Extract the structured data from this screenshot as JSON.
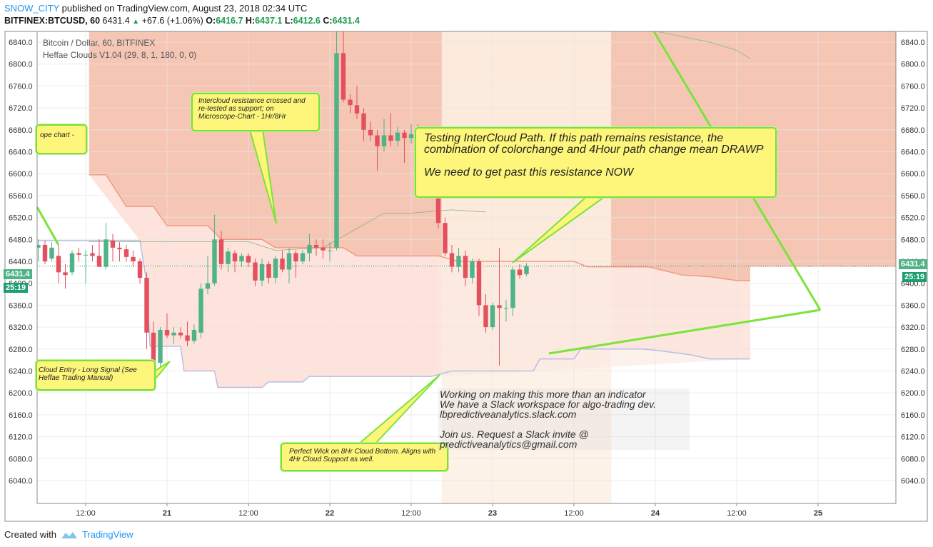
{
  "header": {
    "user": "SNOW_CITY",
    "published": " published on TradingView.com, August 23, 2018 02:34 UTC",
    "symbol": "BITFINEX:BTCUSD, 60",
    "last": "6431.4",
    "change": "+67.6 (+1.06%)",
    "open_label": "O:",
    "open": "6416.7",
    "high_label": "H:",
    "high": "6437.1",
    "low_label": "L:",
    "low": "6412.6",
    "close_label": "C:",
    "close": "6431.4"
  },
  "legend": {
    "title": "Bitcoin / Dollar, 60, BITFINEX",
    "indicator": "Heffae Clouds V1.04 (29, 8, 1, 180, 0, 0)"
  },
  "price_tags": {
    "price": "6431.4",
    "countdown": "25:19"
  },
  "callouts": {
    "intercloud": "Intercloud resistance crossed and re-tested as support; on Microscope-Chart - 1Hr/8Hr",
    "testing_line1": "Testing InterCloud Path. If this path remains resistance, the combination of colorchange and 4Hour path change mean DRAWP",
    "testing_line2": "We need to get past this resistance NOW",
    "perfect_wick": "Perfect Wick on 8Hr Cloud Bottom. Aligns with 4Hr Cloud Support as well.",
    "scope": "ope chart -",
    "entry": "Cloud Entry - Long Signal (See Heffae Trading Manual)"
  },
  "note": "Working on making this more than an indicator\nWe have a Slack workspace for algo-trading dev.\nlbpredictiveanalytics.slack.com\n\nJoin us. Request a Slack invite @\npredictiveanalytics@gmail.com",
  "footer": {
    "created": "Created with",
    "brand": "TradingView"
  },
  "colors": {
    "up": "#4fb387",
    "down": "#e4505e",
    "cloud_red": "#f6c6b5",
    "cloud_pink": "#fde3dc",
    "cloud_light": "#fdf0e4",
    "callout": "#fdf67a",
    "callout_border": "#78e03a"
  },
  "chart_data": {
    "type": "candlestick",
    "title": "Bitcoin / Dollar, 60, BITFINEX",
    "ylim": [
      6000,
      6860
    ],
    "y_ticks": [
      6040,
      6080,
      6120,
      6160,
      6200,
      6240,
      6280,
      6320,
      6360,
      6400,
      6440,
      6480,
      6520,
      6560,
      6600,
      6640,
      6680,
      6720,
      6760,
      6800,
      6840
    ],
    "x_ticks": [
      {
        "label": "12:00",
        "hour": 12
      },
      {
        "label": "21",
        "hour": 24
      },
      {
        "label": "12:00",
        "hour": 36
      },
      {
        "label": "22",
        "hour": 48
      },
      {
        "label": "12:00",
        "hour": 60
      },
      {
        "label": "23",
        "hour": 72
      },
      {
        "label": "12:00",
        "hour": 84
      },
      {
        "label": "24",
        "hour": 96
      },
      {
        "label": "12:00",
        "hour": 108
      },
      {
        "label": "25",
        "hour": 120
      }
    ],
    "x_range_hours": [
      5,
      110
    ],
    "x_unit": "hours from 20 Aug 2018 00:00 UTC",
    "last_price": 6431.4,
    "candles": [
      {
        "t": 5,
        "o": 6465,
        "h": 6480,
        "l": 6440,
        "c": 6470
      },
      {
        "t": 6,
        "o": 6470,
        "h": 6478,
        "l": 6435,
        "c": 6440
      },
      {
        "t": 7,
        "o": 6445,
        "h": 6475,
        "l": 6440,
        "c": 6465
      },
      {
        "t": 8,
        "o": 6450,
        "h": 6470,
        "l": 6400,
        "c": 6420
      },
      {
        "t": 9,
        "o": 6420,
        "h": 6435,
        "l": 6390,
        "c": 6415
      },
      {
        "t": 10,
        "o": 6420,
        "h": 6460,
        "l": 6415,
        "c": 6455
      },
      {
        "t": 11,
        "o": 6455,
        "h": 6465,
        "l": 6440,
        "c": 6452
      },
      {
        "t": 12,
        "o": 6452,
        "h": 6460,
        "l": 6400,
        "c": 6452
      },
      {
        "t": 13,
        "o": 6455,
        "h": 6470,
        "l": 6440,
        "c": 6450
      },
      {
        "t": 14,
        "o": 6450,
        "h": 6480,
        "l": 6430,
        "c": 6430
      },
      {
        "t": 15,
        "o": 6430,
        "h": 6510,
        "l": 6425,
        "c": 6480
      },
      {
        "t": 16,
        "o": 6478,
        "h": 6490,
        "l": 6440,
        "c": 6465
      },
      {
        "t": 17,
        "o": 6465,
        "h": 6475,
        "l": 6440,
        "c": 6462
      },
      {
        "t": 18,
        "o": 6462,
        "h": 6470,
        "l": 6440,
        "c": 6448
      },
      {
        "t": 19,
        "o": 6448,
        "h": 6460,
        "l": 6430,
        "c": 6440
      },
      {
        "t": 20,
        "o": 6440,
        "h": 6445,
        "l": 6400,
        "c": 6410
      },
      {
        "t": 21,
        "o": 6410,
        "h": 6420,
        "l": 6280,
        "c": 6310
      },
      {
        "t": 22,
        "o": 6310,
        "h": 6330,
        "l": 6240,
        "c": 6255
      },
      {
        "t": 23,
        "o": 6255,
        "h": 6320,
        "l": 6245,
        "c": 6315
      },
      {
        "t": 24,
        "o": 6315,
        "h": 6345,
        "l": 6300,
        "c": 6305
      },
      {
        "t": 25,
        "o": 6305,
        "h": 6320,
        "l": 6290,
        "c": 6310
      },
      {
        "t": 26,
        "o": 6310,
        "h": 6320,
        "l": 6300,
        "c": 6305
      },
      {
        "t": 27,
        "o": 6305,
        "h": 6330,
        "l": 6285,
        "c": 6295
      },
      {
        "t": 28,
        "o": 6295,
        "h": 6325,
        "l": 6290,
        "c": 6315
      },
      {
        "t": 29,
        "o": 6310,
        "h": 6400,
        "l": 6300,
        "c": 6390
      },
      {
        "t": 30,
        "o": 6390,
        "h": 6450,
        "l": 6380,
        "c": 6400
      },
      {
        "t": 31,
        "o": 6400,
        "h": 6525,
        "l": 6395,
        "c": 6480
      },
      {
        "t": 32,
        "o": 6480,
        "h": 6495,
        "l": 6425,
        "c": 6435
      },
      {
        "t": 33,
        "o": 6435,
        "h": 6465,
        "l": 6420,
        "c": 6458
      },
      {
        "t": 34,
        "o": 6455,
        "h": 6460,
        "l": 6420,
        "c": 6440
      },
      {
        "t": 35,
        "o": 6440,
        "h": 6455,
        "l": 6430,
        "c": 6450
      },
      {
        "t": 36,
        "o": 6450,
        "h": 6455,
        "l": 6430,
        "c": 6438
      },
      {
        "t": 37,
        "o": 6438,
        "h": 6445,
        "l": 6395,
        "c": 6405
      },
      {
        "t": 38,
        "o": 6405,
        "h": 6445,
        "l": 6395,
        "c": 6435
      },
      {
        "t": 39,
        "o": 6435,
        "h": 6440,
        "l": 6400,
        "c": 6410
      },
      {
        "t": 40,
        "o": 6410,
        "h": 6450,
        "l": 6400,
        "c": 6445
      },
      {
        "t": 41,
        "o": 6445,
        "h": 6460,
        "l": 6420,
        "c": 6425
      },
      {
        "t": 42,
        "o": 6425,
        "h": 6465,
        "l": 6400,
        "c": 6455
      },
      {
        "t": 43,
        "o": 6455,
        "h": 6460,
        "l": 6410,
        "c": 6440
      },
      {
        "t": 44,
        "o": 6440,
        "h": 6460,
        "l": 6435,
        "c": 6455
      },
      {
        "t": 45,
        "o": 6455,
        "h": 6490,
        "l": 6440,
        "c": 6470
      },
      {
        "t": 46,
        "o": 6470,
        "h": 6480,
        "l": 6450,
        "c": 6465
      },
      {
        "t": 47,
        "o": 6465,
        "h": 6480,
        "l": 6445,
        "c": 6460
      },
      {
        "t": 48,
        "o": 6460,
        "h": 6475,
        "l": 6440,
        "c": 6460
      },
      {
        "t": 49,
        "o": 6465,
        "h": 6860,
        "l": 6460,
        "c": 6820
      },
      {
        "t": 50,
        "o": 6820,
        "h": 6860,
        "l": 6730,
        "c": 6735
      },
      {
        "t": 51,
        "o": 6735,
        "h": 6745,
        "l": 6710,
        "c": 6725
      },
      {
        "t": 52,
        "o": 6725,
        "h": 6760,
        "l": 6700,
        "c": 6710
      },
      {
        "t": 53,
        "o": 6710,
        "h": 6720,
        "l": 6660,
        "c": 6680
      },
      {
        "t": 54,
        "o": 6680,
        "h": 6695,
        "l": 6660,
        "c": 6670
      },
      {
        "t": 55,
        "o": 6670,
        "h": 6680,
        "l": 6605,
        "c": 6650
      },
      {
        "t": 56,
        "o": 6650,
        "h": 6700,
        "l": 6640,
        "c": 6670
      },
      {
        "t": 57,
        "o": 6670,
        "h": 6710,
        "l": 6650,
        "c": 6660
      },
      {
        "t": 58,
        "o": 6660,
        "h": 6685,
        "l": 6650,
        "c": 6675
      },
      {
        "t": 59,
        "o": 6675,
        "h": 6680,
        "l": 6620,
        "c": 6665
      },
      {
        "t": 60,
        "o": 6665,
        "h": 6690,
        "l": 6655,
        "c": 6672
      },
      {
        "t": 61,
        "o": 6672,
        "h": 6690,
        "l": 6640,
        "c": 6660
      },
      {
        "t": 62,
        "o": 6660,
        "h": 6665,
        "l": 6620,
        "c": 6640
      },
      {
        "t": 63,
        "o": 6640,
        "h": 6660,
        "l": 6620,
        "c": 6625
      },
      {
        "t": 64,
        "o": 6625,
        "h": 6650,
        "l": 6500,
        "c": 6510
      },
      {
        "t": 65,
        "o": 6510,
        "h": 6520,
        "l": 6450,
        "c": 6455
      },
      {
        "t": 66,
        "o": 6455,
        "h": 6470,
        "l": 6420,
        "c": 6430
      },
      {
        "t": 67,
        "o": 6430,
        "h": 6465,
        "l": 6420,
        "c": 6450
      },
      {
        "t": 68,
        "o": 6450,
        "h": 6460,
        "l": 6395,
        "c": 6410
      },
      {
        "t": 69,
        "o": 6410,
        "h": 6445,
        "l": 6400,
        "c": 6440
      },
      {
        "t": 70,
        "o": 6440,
        "h": 6445,
        "l": 6340,
        "c": 6360
      },
      {
        "t": 71,
        "o": 6360,
        "h": 6380,
        "l": 6310,
        "c": 6320
      },
      {
        "t": 72,
        "o": 6320,
        "h": 6365,
        "l": 6315,
        "c": 6360
      },
      {
        "t": 73,
        "o": 6360,
        "h": 6465,
        "l": 6250,
        "c": 6355
      },
      {
        "t": 74,
        "o": 6355,
        "h": 6370,
        "l": 6330,
        "c": 6355
      },
      {
        "t": 75,
        "o": 6355,
        "h": 6430,
        "l": 6340,
        "c": 6425
      },
      {
        "t": 76,
        "o": 6425,
        "h": 6435,
        "l": 6408,
        "c": 6415
      },
      {
        "t": 77,
        "o": 6416.7,
        "h": 6437.1,
        "l": 6412.6,
        "c": 6431.4
      }
    ],
    "clouds": {
      "upper_red": [
        [
          12.5,
          6860
        ],
        [
          52,
          6860
        ],
        [
          52,
          6860
        ],
        [
          96,
          6860
        ],
        [
          96,
          6860
        ],
        [
          110,
          6860
        ]
      ],
      "lower_bound": [
        [
          12.5,
          6598
        ],
        [
          15,
          6598
        ],
        [
          18,
          6540
        ],
        [
          22,
          6540
        ],
        [
          24,
          6505
        ],
        [
          30,
          6505
        ],
        [
          32,
          6480
        ],
        [
          38,
          6480
        ],
        [
          40,
          6465
        ],
        [
          50,
          6465
        ],
        [
          52,
          6450
        ],
        [
          64,
          6450
        ],
        [
          67,
          6440
        ],
        [
          84,
          6440
        ],
        [
          86,
          6430
        ],
        [
          95,
          6430
        ],
        [
          100,
          6415
        ],
        [
          104,
          6412
        ],
        [
          108,
          6405
        ],
        [
          110,
          6405
        ]
      ],
      "support_blue": [
        [
          5,
          6478
        ],
        [
          20,
          6478
        ],
        [
          21,
          6400
        ],
        [
          21.5,
          6285
        ],
        [
          26,
          6285
        ],
        [
          26.5,
          6240
        ],
        [
          31,
          6240
        ],
        [
          31.5,
          6210
        ],
        [
          38,
          6210
        ],
        [
          39,
          6220
        ],
        [
          44,
          6220
        ],
        [
          45,
          6230
        ],
        [
          63,
          6230
        ],
        [
          66,
          6240
        ],
        [
          78,
          6240
        ],
        [
          79,
          6262
        ],
        [
          84,
          6262
        ],
        [
          85,
          6280
        ],
        [
          94,
          6280
        ],
        [
          96,
          6278
        ],
        [
          101,
          6270
        ],
        [
          104,
          6262
        ],
        [
          110,
          6262
        ]
      ],
      "upper_trail": [
        [
          96,
          6860
        ],
        [
          104,
          6840
        ],
        [
          108,
          6825
        ],
        [
          110,
          6810
        ]
      ]
    }
  }
}
